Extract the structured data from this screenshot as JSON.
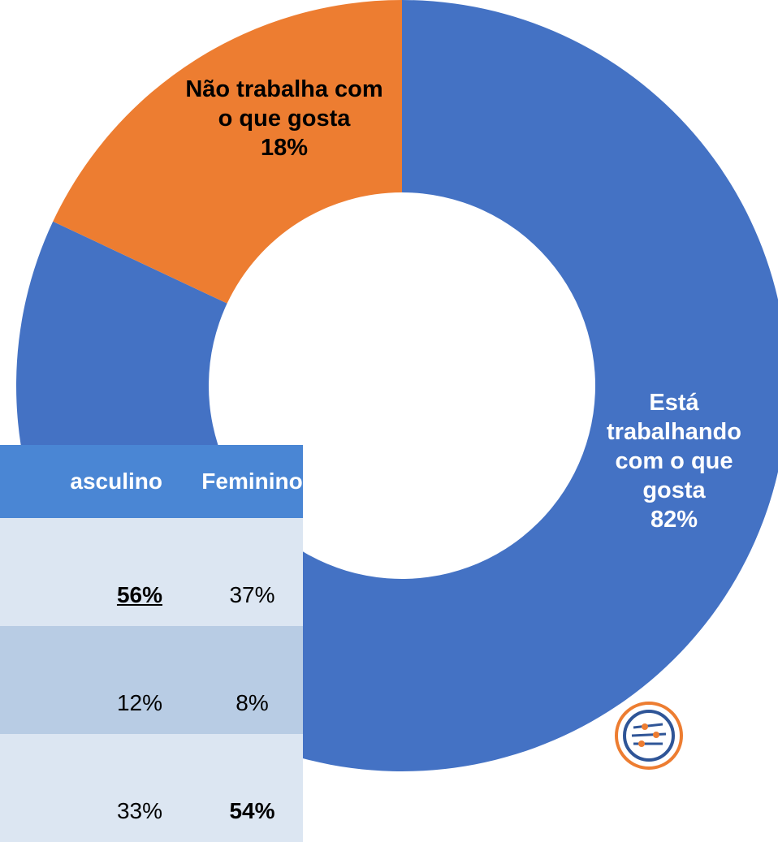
{
  "chart_data": {
    "type": "donut",
    "categories": [
      "Está trabalhando com o que gosta",
      "Não trabalha com o que gosta"
    ],
    "values": [
      82,
      18
    ],
    "value_labels": [
      "82%",
      "18%"
    ],
    "colors": [
      "#4472c4",
      "#ed7d31"
    ]
  },
  "table": {
    "header": [
      "asculino",
      "Feminino"
    ],
    "rows": [
      [
        "56%",
        "37%"
      ],
      [
        "12%",
        "8%"
      ],
      [
        "33%",
        "54%"
      ]
    ]
  }
}
